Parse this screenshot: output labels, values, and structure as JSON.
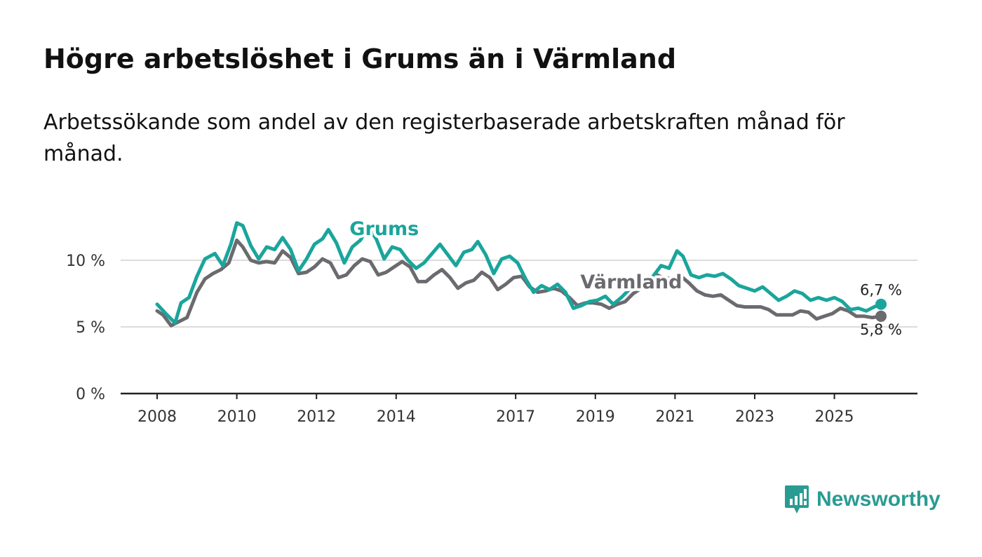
{
  "header": {
    "title": "Högre arbetslöshet i Grums än i Värmland",
    "subtitle": "Arbetssökande som andel av den registerbaserade arbetskraften månad för månad."
  },
  "brand": {
    "name": "Newsworthy",
    "color": "#2a9b93"
  },
  "chart_data": {
    "type": "line",
    "title": "Högre arbetslöshet i Grums än i Värmland",
    "subtitle": "Arbetssökande som andel av den registerbaserade arbetskraften månad för månad.",
    "xlabel": "",
    "ylabel": "",
    "xlim": [
      2008.0,
      2026.17
    ],
    "ylim": [
      0,
      10
    ],
    "grid": true,
    "y_ticks": [
      {
        "value": 0,
        "label": "0 %"
      },
      {
        "value": 5,
        "label": "5 %"
      },
      {
        "value": 10,
        "label": "10 %"
      }
    ],
    "x_ticks": [
      {
        "value": 2008,
        "label": "2008"
      },
      {
        "value": 2010,
        "label": "2010"
      },
      {
        "value": 2012,
        "label": "2012"
      },
      {
        "value": 2014,
        "label": "2014"
      },
      {
        "value": 2017,
        "label": "2017"
      },
      {
        "value": 2019,
        "label": "2019"
      },
      {
        "value": 2021,
        "label": "2021"
      },
      {
        "value": 2023,
        "label": "2023"
      },
      {
        "value": 2025,
        "label": "2025"
      }
    ],
    "series": [
      {
        "name": "Grums",
        "color": "#1aa59c",
        "end_label": "6,7 %",
        "points": [
          [
            2008.0,
            6.7
          ],
          [
            2008.25,
            5.9
          ],
          [
            2008.45,
            5.3
          ],
          [
            2008.6,
            6.8
          ],
          [
            2008.8,
            7.2
          ],
          [
            2009.0,
            8.8
          ],
          [
            2009.2,
            10.1
          ],
          [
            2009.45,
            10.5
          ],
          [
            2009.65,
            9.6
          ],
          [
            2009.85,
            11.2
          ],
          [
            2010.0,
            12.8
          ],
          [
            2010.15,
            12.6
          ],
          [
            2010.35,
            11.1
          ],
          [
            2010.55,
            10.1
          ],
          [
            2010.75,
            11.0
          ],
          [
            2010.95,
            10.8
          ],
          [
            2011.15,
            11.7
          ],
          [
            2011.35,
            10.8
          ],
          [
            2011.55,
            9.2
          ],
          [
            2011.75,
            10.1
          ],
          [
            2011.95,
            11.2
          ],
          [
            2012.15,
            11.6
          ],
          [
            2012.3,
            12.3
          ],
          [
            2012.5,
            11.3
          ],
          [
            2012.7,
            9.8
          ],
          [
            2012.9,
            11.0
          ],
          [
            2013.1,
            11.5
          ],
          [
            2013.3,
            12.5
          ],
          [
            2013.5,
            11.6
          ],
          [
            2013.7,
            10.1
          ],
          [
            2013.9,
            11.0
          ],
          [
            2014.1,
            10.8
          ],
          [
            2014.3,
            10.0
          ],
          [
            2014.5,
            9.4
          ],
          [
            2014.7,
            9.8
          ],
          [
            2014.9,
            10.5
          ],
          [
            2015.1,
            11.2
          ],
          [
            2015.3,
            10.4
          ],
          [
            2015.5,
            9.6
          ],
          [
            2015.7,
            10.6
          ],
          [
            2015.9,
            10.8
          ],
          [
            2016.05,
            11.4
          ],
          [
            2016.25,
            10.4
          ],
          [
            2016.45,
            9.0
          ],
          [
            2016.65,
            10.1
          ],
          [
            2016.85,
            10.3
          ],
          [
            2017.05,
            9.8
          ],
          [
            2017.25,
            8.6
          ],
          [
            2017.45,
            7.6
          ],
          [
            2017.65,
            8.1
          ],
          [
            2017.85,
            7.8
          ],
          [
            2018.05,
            8.2
          ],
          [
            2018.25,
            7.6
          ],
          [
            2018.45,
            6.4
          ],
          [
            2018.65,
            6.6
          ],
          [
            2018.85,
            6.9
          ],
          [
            2019.05,
            7.0
          ],
          [
            2019.25,
            7.3
          ],
          [
            2019.45,
            6.7
          ],
          [
            2019.65,
            7.2
          ],
          [
            2019.85,
            7.8
          ],
          [
            2020.05,
            8.8
          ],
          [
            2020.25,
            8.5
          ],
          [
            2020.45,
            8.8
          ],
          [
            2020.65,
            9.6
          ],
          [
            2020.85,
            9.4
          ],
          [
            2021.05,
            10.7
          ],
          [
            2021.2,
            10.3
          ],
          [
            2021.4,
            8.9
          ],
          [
            2021.6,
            8.7
          ],
          [
            2021.8,
            8.9
          ],
          [
            2022.0,
            8.8
          ],
          [
            2022.2,
            9.0
          ],
          [
            2022.4,
            8.6
          ],
          [
            2022.6,
            8.1
          ],
          [
            2022.8,
            7.9
          ],
          [
            2023.0,
            7.7
          ],
          [
            2023.2,
            8.0
          ],
          [
            2023.4,
            7.5
          ],
          [
            2023.6,
            7.0
          ],
          [
            2023.8,
            7.3
          ],
          [
            2024.0,
            7.7
          ],
          [
            2024.2,
            7.5
          ],
          [
            2024.4,
            7.0
          ],
          [
            2024.6,
            7.2
          ],
          [
            2024.8,
            7.0
          ],
          [
            2025.0,
            7.2
          ],
          [
            2025.2,
            6.9
          ],
          [
            2025.4,
            6.3
          ],
          [
            2025.6,
            6.4
          ],
          [
            2025.8,
            6.2
          ],
          [
            2026.0,
            6.5
          ],
          [
            2026.17,
            6.7
          ]
        ]
      },
      {
        "name": "Värmland",
        "color": "#6b6a6f",
        "end_label": "5,8 %",
        "points": [
          [
            2008.0,
            6.2
          ],
          [
            2008.15,
            5.9
          ],
          [
            2008.35,
            5.1
          ],
          [
            2008.55,
            5.4
          ],
          [
            2008.75,
            5.7
          ],
          [
            2009.0,
            7.6
          ],
          [
            2009.2,
            8.6
          ],
          [
            2009.4,
            9.0
          ],
          [
            2009.6,
            9.3
          ],
          [
            2009.8,
            9.8
          ],
          [
            2010.0,
            11.5
          ],
          [
            2010.15,
            11.0
          ],
          [
            2010.35,
            10.0
          ],
          [
            2010.55,
            9.8
          ],
          [
            2010.75,
            9.9
          ],
          [
            2010.95,
            9.8
          ],
          [
            2011.15,
            10.7
          ],
          [
            2011.35,
            10.2
          ],
          [
            2011.55,
            9.0
          ],
          [
            2011.75,
            9.1
          ],
          [
            2011.95,
            9.5
          ],
          [
            2012.15,
            10.1
          ],
          [
            2012.35,
            9.8
          ],
          [
            2012.55,
            8.7
          ],
          [
            2012.75,
            8.9
          ],
          [
            2012.95,
            9.6
          ],
          [
            2013.15,
            10.1
          ],
          [
            2013.35,
            9.9
          ],
          [
            2013.55,
            8.9
          ],
          [
            2013.75,
            9.1
          ],
          [
            2013.95,
            9.5
          ],
          [
            2014.15,
            9.9
          ],
          [
            2014.35,
            9.5
          ],
          [
            2014.55,
            8.4
          ],
          [
            2014.75,
            8.4
          ],
          [
            2014.95,
            8.9
          ],
          [
            2015.15,
            9.3
          ],
          [
            2015.35,
            8.7
          ],
          [
            2015.55,
            7.9
          ],
          [
            2015.75,
            8.3
          ],
          [
            2015.95,
            8.5
          ],
          [
            2016.15,
            9.1
          ],
          [
            2016.35,
            8.7
          ],
          [
            2016.55,
            7.8
          ],
          [
            2016.75,
            8.2
          ],
          [
            2016.95,
            8.7
          ],
          [
            2017.15,
            8.8
          ],
          [
            2017.35,
            8.0
          ],
          [
            2017.55,
            7.6
          ],
          [
            2017.75,
            7.7
          ],
          [
            2017.95,
            7.9
          ],
          [
            2018.15,
            7.7
          ],
          [
            2018.35,
            7.2
          ],
          [
            2018.55,
            6.6
          ],
          [
            2018.75,
            6.8
          ],
          [
            2018.95,
            6.8
          ],
          [
            2019.15,
            6.7
          ],
          [
            2019.35,
            6.4
          ],
          [
            2019.55,
            6.7
          ],
          [
            2019.75,
            6.9
          ],
          [
            2019.95,
            7.5
          ],
          [
            2020.15,
            7.9
          ],
          [
            2020.35,
            8.5
          ],
          [
            2020.55,
            8.9
          ],
          [
            2020.75,
            8.6
          ],
          [
            2020.95,
            8.7
          ],
          [
            2021.15,
            8.8
          ],
          [
            2021.35,
            8.3
          ],
          [
            2021.55,
            7.7
          ],
          [
            2021.75,
            7.4
          ],
          [
            2021.95,
            7.3
          ],
          [
            2022.15,
            7.4
          ],
          [
            2022.35,
            7.0
          ],
          [
            2022.55,
            6.6
          ],
          [
            2022.75,
            6.5
          ],
          [
            2022.95,
            6.5
          ],
          [
            2023.15,
            6.5
          ],
          [
            2023.35,
            6.3
          ],
          [
            2023.55,
            5.9
          ],
          [
            2023.75,
            5.9
          ],
          [
            2023.95,
            5.9
          ],
          [
            2024.15,
            6.2
          ],
          [
            2024.35,
            6.1
          ],
          [
            2024.55,
            5.6
          ],
          [
            2024.75,
            5.8
          ],
          [
            2024.95,
            6.0
          ],
          [
            2025.15,
            6.4
          ],
          [
            2025.35,
            6.2
          ],
          [
            2025.55,
            5.8
          ],
          [
            2025.75,
            5.8
          ],
          [
            2025.95,
            5.7
          ],
          [
            2026.17,
            5.8
          ]
        ]
      }
    ],
    "annotations": [
      {
        "text": "Grums",
        "series": "Grums",
        "x": 2013.7,
        "y": 11.9
      },
      {
        "text": "Värmland",
        "series": "Värmland",
        "x": 2019.9,
        "y": 7.9
      }
    ]
  }
}
